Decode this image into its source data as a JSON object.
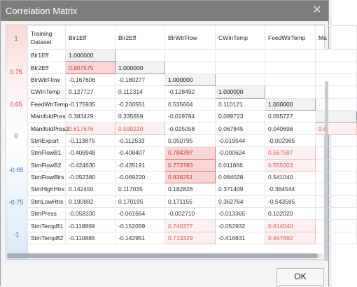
{
  "dialog": {
    "title": "Correlation Matrix",
    "ok_label": "OK"
  },
  "scale": {
    "ticks": [
      "1",
      "0.75",
      "0.65",
      "0",
      "-0.65",
      "-0.75",
      "-1"
    ]
  },
  "matrix": {
    "corner": "Training Dataset",
    "columns": [
      "Blr1Eff",
      "Blr2Eff",
      "BlrWtrFlow",
      "CWInTemp",
      "FeedWtrTemp",
      "Ma"
    ],
    "rows": [
      {
        "name": "Blr1Eff",
        "cells": [
          {
            "v": "1.000000",
            "s": "diag"
          },
          {
            "v": "",
            "s": "empty"
          },
          {
            "v": "",
            "s": "empty"
          },
          {
            "v": "",
            "s": "empty"
          },
          {
            "v": "",
            "s": "empty"
          },
          {
            "v": "",
            "s": "empty"
          }
        ]
      },
      {
        "name": "Blr2Eff",
        "cells": [
          {
            "v": "0.907575",
            "s": "strong"
          },
          {
            "v": "1.000000",
            "s": "diag"
          },
          {
            "v": "",
            "s": "empty"
          },
          {
            "v": "",
            "s": "empty"
          },
          {
            "v": "",
            "s": "empty"
          },
          {
            "v": "",
            "s": "empty"
          }
        ]
      },
      {
        "name": "BlrWtrFlow",
        "cells": [
          {
            "v": "-0.167606",
            "s": ""
          },
          {
            "v": "-0.180277",
            "s": ""
          },
          {
            "v": "1.000000",
            "s": "diag"
          },
          {
            "v": "",
            "s": "empty"
          },
          {
            "v": "",
            "s": "empty"
          },
          {
            "v": "",
            "s": "empty"
          }
        ]
      },
      {
        "name": "CWInTemp",
        "cells": [
          {
            "v": "0.127727",
            "s": ""
          },
          {
            "v": "0.112314",
            "s": ""
          },
          {
            "v": "-0.128492",
            "s": ""
          },
          {
            "v": "1.000000",
            "s": "diag"
          },
          {
            "v": "",
            "s": "empty"
          },
          {
            "v": "",
            "s": "empty"
          }
        ]
      },
      {
        "name": "FeedWtrTemp",
        "cells": [
          {
            "v": "-0.175935",
            "s": ""
          },
          {
            "v": "-0.200551",
            "s": ""
          },
          {
            "v": "0.535604",
            "s": ""
          },
          {
            "v": "0.110121",
            "s": ""
          },
          {
            "v": "1.000000",
            "s": "diag"
          },
          {
            "v": "",
            "s": "empty"
          }
        ]
      },
      {
        "name": "ManifoldPres",
        "cells": [
          {
            "v": "0.383429",
            "s": ""
          },
          {
            "v": "0.335659",
            "s": ""
          },
          {
            "v": "-0.019784",
            "s": ""
          },
          {
            "v": "0.089723",
            "s": ""
          },
          {
            "v": "0.055727",
            "s": ""
          },
          {
            "v": "",
            "s": "diag"
          }
        ]
      },
      {
        "name": "ManifoldPres2",
        "cells": [
          {
            "v": "0.617676",
            "s": "mild"
          },
          {
            "v": "0.590220",
            "s": "mild"
          },
          {
            "v": "-0.025058",
            "s": ""
          },
          {
            "v": "0.067845",
            "s": ""
          },
          {
            "v": "0.040698",
            "s": ""
          },
          {
            "v": "0.6",
            "s": "mild"
          }
        ]
      },
      {
        "name": "StmExport",
        "cells": [
          {
            "v": "-0.113875",
            "s": ""
          },
          {
            "v": "-0.112533",
            "s": ""
          },
          {
            "v": "0.050795",
            "s": ""
          },
          {
            "v": "-0.019544",
            "s": ""
          },
          {
            "v": "-0.002965",
            "s": ""
          },
          {
            "v": "",
            "s": ""
          }
        ]
      },
      {
        "name": "StmFlowB1",
        "cells": [
          {
            "v": "-0.408948",
            "s": ""
          },
          {
            "v": "-0.408407",
            "s": ""
          },
          {
            "v": "0.784397",
            "s": "strong"
          },
          {
            "v": "-0.000624",
            "s": ""
          },
          {
            "v": "0.567587",
            "s": "mild"
          },
          {
            "v": "",
            "s": ""
          }
        ]
      },
      {
        "name": "StmFlowB2",
        "cells": [
          {
            "v": "-0.424630",
            "s": ""
          },
          {
            "v": "-0.435191",
            "s": ""
          },
          {
            "v": "0.773783",
            "s": "strong"
          },
          {
            "v": "0.011866",
            "s": ""
          },
          {
            "v": "0.555003",
            "s": "mild"
          },
          {
            "v": "",
            "s": ""
          }
        ]
      },
      {
        "name": "StmFlowBlrs",
        "cells": [
          {
            "v": "-0.052380",
            "s": ""
          },
          {
            "v": "-0.069220",
            "s": ""
          },
          {
            "v": "0.838251",
            "s": "strong"
          },
          {
            "v": "0.084028",
            "s": ""
          },
          {
            "v": "0.541040",
            "s": ""
          },
          {
            "v": "",
            "s": ""
          }
        ]
      },
      {
        "name": "StmHighHtrs",
        "cells": [
          {
            "v": "0.142450",
            "s": ""
          },
          {
            "v": "0.117035",
            "s": ""
          },
          {
            "v": "0.182826",
            "s": ""
          },
          {
            "v": "0.371409",
            "s": ""
          },
          {
            "v": "-0.384544",
            "s": ""
          },
          {
            "v": "",
            "s": ""
          }
        ]
      },
      {
        "name": "StmLowHtrs",
        "cells": [
          {
            "v": "0.190882",
            "s": ""
          },
          {
            "v": "0.170195",
            "s": ""
          },
          {
            "v": "0.171155",
            "s": ""
          },
          {
            "v": "0.362764",
            "s": ""
          },
          {
            "v": "-0.543585",
            "s": ""
          },
          {
            "v": "",
            "s": ""
          }
        ]
      },
      {
        "name": "StmPress",
        "cells": [
          {
            "v": "-0.058330",
            "s": ""
          },
          {
            "v": "-0.061664",
            "s": ""
          },
          {
            "v": "-0.002710",
            "s": ""
          },
          {
            "v": "-0.013365",
            "s": ""
          },
          {
            "v": "0.102020",
            "s": ""
          },
          {
            "v": "",
            "s": ""
          }
        ]
      },
      {
        "name": "StmTempB1",
        "cells": [
          {
            "v": "-0.118869",
            "s": ""
          },
          {
            "v": "-0.152059",
            "s": ""
          },
          {
            "v": "0.740377",
            "s": "mild"
          },
          {
            "v": "-0.052932",
            "s": ""
          },
          {
            "v": "0.614040",
            "s": "mild"
          },
          {
            "v": "",
            "s": ""
          }
        ]
      },
      {
        "name": "StmTempB2",
        "cells": [
          {
            "v": "-0.110886",
            "s": ""
          },
          {
            "v": "-0.142951",
            "s": ""
          },
          {
            "v": "0.713329",
            "s": "mild"
          },
          {
            "v": "-0.416831",
            "s": ""
          },
          {
            "v": "0.647692",
            "s": "mild"
          },
          {
            "v": "",
            "s": ""
          }
        ]
      }
    ]
  },
  "colors": {
    "title_bar": "#7d7d7d",
    "strong_fill": "#fbd6d6",
    "strong_border": "#d86a6a",
    "mild_fill": "#fdf0f0",
    "scale_pos": "#c0392b",
    "scale_neg": "#2e75b6"
  }
}
